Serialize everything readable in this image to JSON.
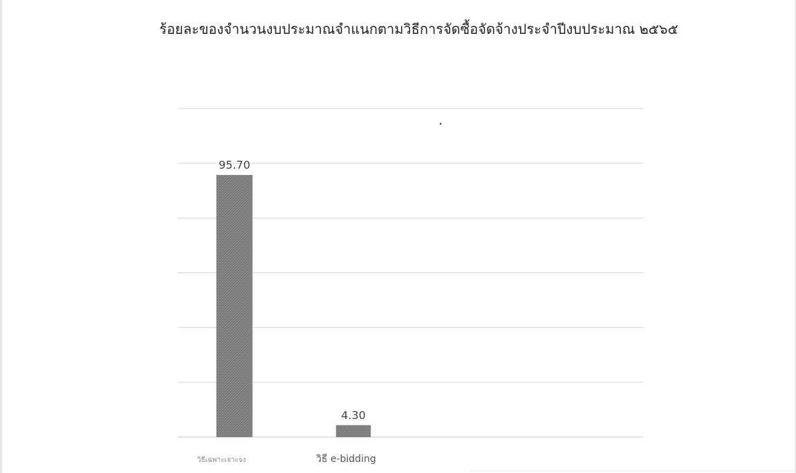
{
  "chart_data": {
    "type": "bar",
    "title": "ร้อยละของจำนวนงบประมาณจำแนกตามวิธีการจัดซื้อจัดจ้างประจำปีงบประมาณ ๒๕๖๕",
    "categories": [
      "วิธีเฉพาะเจาะจง",
      "วิธี e-bidding"
    ],
    "values": [
      95.7,
      4.3
    ],
    "data_labels": [
      "95.70",
      "4.30"
    ],
    "xlabel": "",
    "ylabel": "",
    "ylim": [
      0,
      120
    ],
    "grid": true,
    "legend": "none",
    "colors": {
      "bar": "#7a7a7a",
      "grid": "#d6d6d6",
      "text": "#222222"
    }
  }
}
